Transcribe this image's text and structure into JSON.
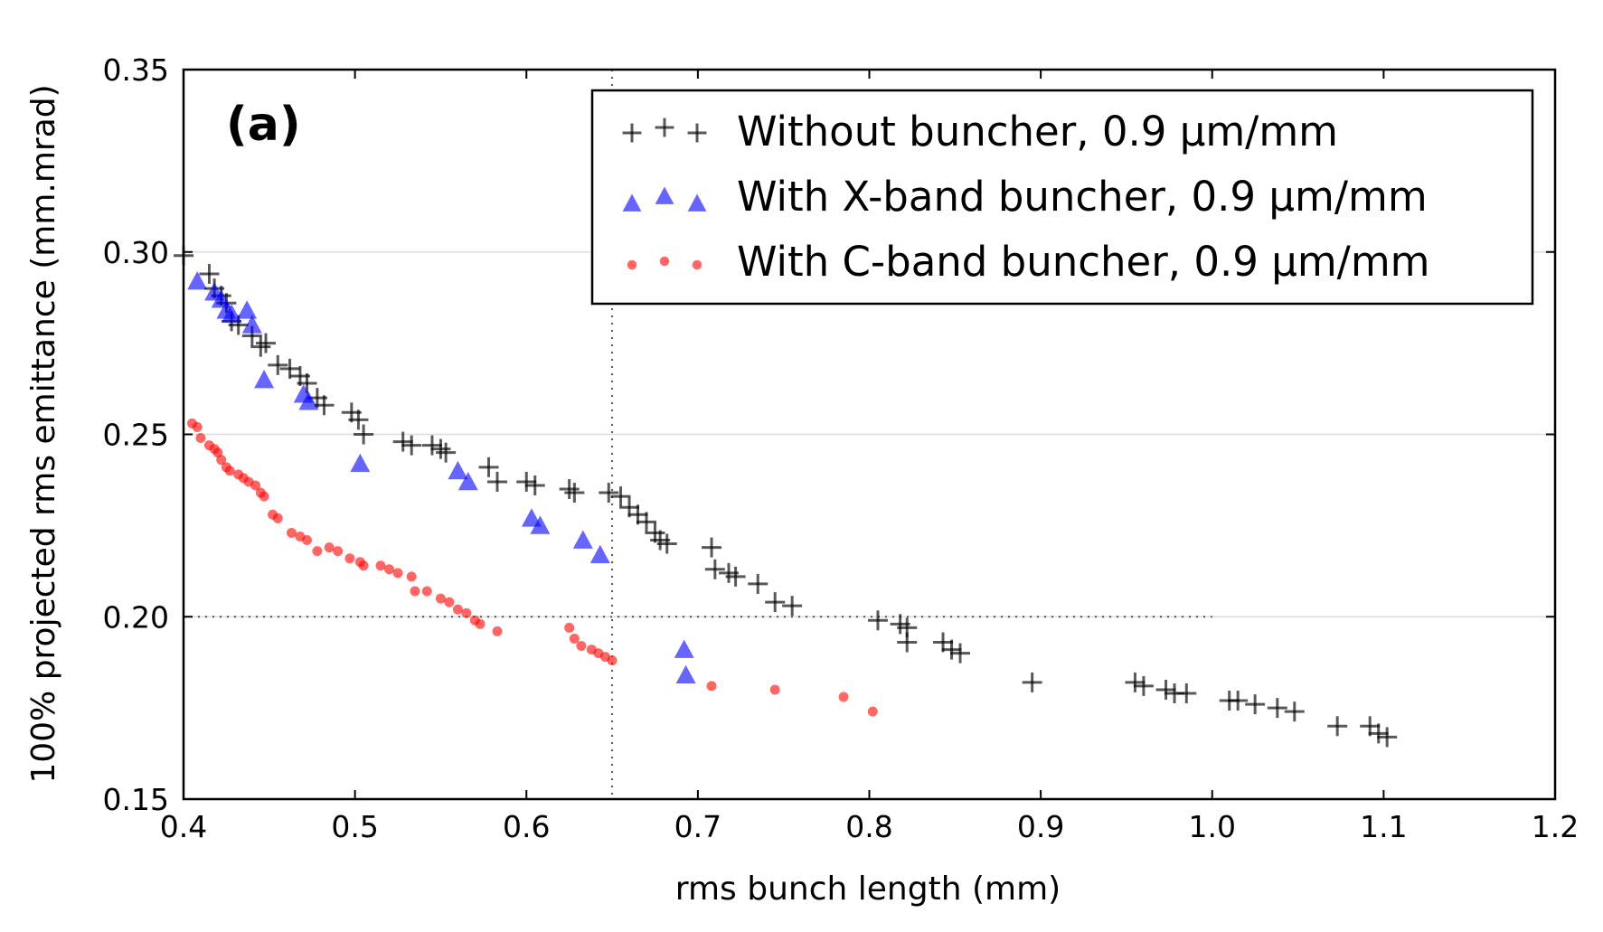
{
  "chart_data": {
    "type": "scatter",
    "panel_label": "(a)",
    "xlabel": "rms bunch length (mm)",
    "ylabel": "100% projected rms emittance (mm.mrad)",
    "xlim": [
      0.4,
      1.2
    ],
    "ylim": [
      0.15,
      0.35
    ],
    "xticks": [
      "0.4",
      "0.5",
      "0.6",
      "0.7",
      "0.8",
      "0.9",
      "1.0",
      "1.1",
      "1.2"
    ],
    "yticks": [
      "0.15",
      "0.20",
      "0.25",
      "0.30",
      "0.35"
    ],
    "grid": "horizontal",
    "legend_position": "top-right",
    "reference_lines": [
      {
        "orientation": "vertical",
        "x": 0.65,
        "style": "dotted"
      },
      {
        "orientation": "horizontal",
        "y": 0.2,
        "x_from": 0.4,
        "x_to": 1.0,
        "style": "dotted"
      }
    ],
    "series": [
      {
        "name": "Without buncher, 0.9 µm/mm",
        "marker": "plus",
        "color": "#000000",
        "points": [
          [
            0.4,
            0.299
          ],
          [
            0.415,
            0.294
          ],
          [
            0.418,
            0.29
          ],
          [
            0.422,
            0.288
          ],
          [
            0.425,
            0.286
          ],
          [
            0.428,
            0.281
          ],
          [
            0.432,
            0.28
          ],
          [
            0.44,
            0.277
          ],
          [
            0.445,
            0.274
          ],
          [
            0.448,
            0.275
          ],
          [
            0.455,
            0.269
          ],
          [
            0.462,
            0.268
          ],
          [
            0.468,
            0.266
          ],
          [
            0.472,
            0.264
          ],
          [
            0.478,
            0.26
          ],
          [
            0.482,
            0.258
          ],
          [
            0.498,
            0.256
          ],
          [
            0.502,
            0.254
          ],
          [
            0.505,
            0.25
          ],
          [
            0.528,
            0.248
          ],
          [
            0.533,
            0.247
          ],
          [
            0.545,
            0.247
          ],
          [
            0.55,
            0.246
          ],
          [
            0.553,
            0.245
          ],
          [
            0.578,
            0.241
          ],
          [
            0.583,
            0.237
          ],
          [
            0.6,
            0.237
          ],
          [
            0.605,
            0.236
          ],
          [
            0.625,
            0.235
          ],
          [
            0.628,
            0.234
          ],
          [
            0.648,
            0.234
          ],
          [
            0.655,
            0.233
          ],
          [
            0.66,
            0.23
          ],
          [
            0.665,
            0.228
          ],
          [
            0.67,
            0.226
          ],
          [
            0.675,
            0.223
          ],
          [
            0.678,
            0.221
          ],
          [
            0.682,
            0.22
          ],
          [
            0.708,
            0.219
          ],
          [
            0.71,
            0.213
          ],
          [
            0.718,
            0.212
          ],
          [
            0.722,
            0.211
          ],
          [
            0.735,
            0.209
          ],
          [
            0.745,
            0.204
          ],
          [
            0.755,
            0.203
          ],
          [
            0.805,
            0.199
          ],
          [
            0.818,
            0.198
          ],
          [
            0.822,
            0.197
          ],
          [
            0.822,
            0.193
          ],
          [
            0.843,
            0.193
          ],
          [
            0.848,
            0.191
          ],
          [
            0.853,
            0.19
          ],
          [
            0.895,
            0.182
          ],
          [
            0.955,
            0.182
          ],
          [
            0.96,
            0.181
          ],
          [
            0.973,
            0.18
          ],
          [
            0.978,
            0.179
          ],
          [
            0.985,
            0.179
          ],
          [
            1.01,
            0.177
          ],
          [
            1.015,
            0.177
          ],
          [
            1.025,
            0.176
          ],
          [
            1.038,
            0.175
          ],
          [
            1.048,
            0.174
          ],
          [
            1.073,
            0.17
          ],
          [
            1.092,
            0.17
          ],
          [
            1.097,
            0.168
          ],
          [
            1.102,
            0.167
          ]
        ]
      },
      {
        "name": "With X-band buncher, 0.9 µm/mm",
        "marker": "triangle",
        "color": "#0000ff",
        "points": [
          [
            0.408,
            0.292
          ],
          [
            0.418,
            0.289
          ],
          [
            0.422,
            0.287
          ],
          [
            0.425,
            0.284
          ],
          [
            0.428,
            0.283
          ],
          [
            0.437,
            0.284
          ],
          [
            0.44,
            0.28
          ],
          [
            0.447,
            0.265
          ],
          [
            0.47,
            0.261
          ],
          [
            0.473,
            0.259
          ],
          [
            0.503,
            0.242
          ],
          [
            0.56,
            0.24
          ],
          [
            0.566,
            0.237
          ],
          [
            0.603,
            0.227
          ],
          [
            0.608,
            0.225
          ],
          [
            0.633,
            0.221
          ],
          [
            0.643,
            0.217
          ],
          [
            0.692,
            0.191
          ],
          [
            0.693,
            0.184
          ]
        ]
      },
      {
        "name": "With C-band buncher, 0.9 µm/mm",
        "marker": "dot",
        "color": "#ff0000",
        "points": [
          [
            0.405,
            0.253
          ],
          [
            0.408,
            0.252
          ],
          [
            0.41,
            0.249
          ],
          [
            0.415,
            0.247
          ],
          [
            0.418,
            0.246
          ],
          [
            0.42,
            0.245
          ],
          [
            0.422,
            0.243
          ],
          [
            0.425,
            0.241
          ],
          [
            0.427,
            0.24
          ],
          [
            0.432,
            0.239
          ],
          [
            0.435,
            0.238
          ],
          [
            0.438,
            0.237
          ],
          [
            0.442,
            0.236
          ],
          [
            0.445,
            0.234
          ],
          [
            0.447,
            0.233
          ],
          [
            0.452,
            0.228
          ],
          [
            0.455,
            0.227
          ],
          [
            0.463,
            0.223
          ],
          [
            0.468,
            0.222
          ],
          [
            0.472,
            0.221
          ],
          [
            0.478,
            0.218
          ],
          [
            0.485,
            0.219
          ],
          [
            0.49,
            0.218
          ],
          [
            0.497,
            0.216
          ],
          [
            0.503,
            0.215
          ],
          [
            0.505,
            0.214
          ],
          [
            0.515,
            0.214
          ],
          [
            0.52,
            0.213
          ],
          [
            0.525,
            0.212
          ],
          [
            0.533,
            0.211
          ],
          [
            0.535,
            0.207
          ],
          [
            0.542,
            0.207
          ],
          [
            0.55,
            0.205
          ],
          [
            0.555,
            0.204
          ],
          [
            0.56,
            0.202
          ],
          [
            0.565,
            0.201
          ],
          [
            0.57,
            0.199
          ],
          [
            0.573,
            0.198
          ],
          [
            0.583,
            0.196
          ],
          [
            0.625,
            0.197
          ],
          [
            0.628,
            0.194
          ],
          [
            0.632,
            0.192
          ],
          [
            0.638,
            0.191
          ],
          [
            0.642,
            0.19
          ],
          [
            0.646,
            0.189
          ],
          [
            0.65,
            0.188
          ],
          [
            0.708,
            0.181
          ],
          [
            0.745,
            0.18
          ],
          [
            0.785,
            0.178
          ],
          [
            0.802,
            0.174
          ]
        ]
      }
    ]
  }
}
